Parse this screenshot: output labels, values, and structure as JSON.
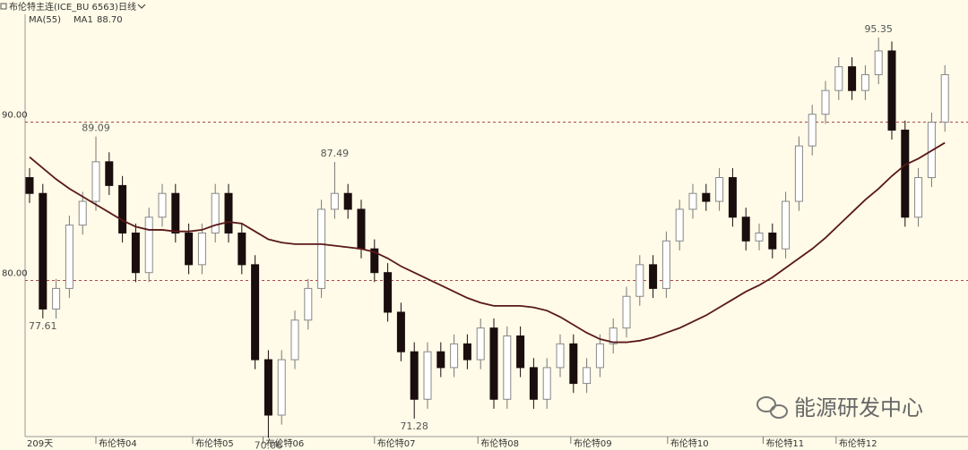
{
  "chart_data": {
    "type": "candlestick",
    "title": "布伦特主连(ICE_BU 6563)",
    "period": "日线",
    "indicator": "MA(55)",
    "ma_label": "MA1",
    "ma_last": {
      "value": 88.7,
      "label": "88.70"
    },
    "day_count": "209天",
    "watermark": "能源研发中心",
    "open": [
      86.5,
      85.5,
      78.2,
      79.5,
      83.5,
      85,
      87.5,
      86,
      83,
      80.5,
      84,
      85.5,
      83,
      81,
      83,
      85.5,
      83,
      81,
      75,
      71.5,
      75,
      77.5,
      79.5,
      84.5,
      85.5,
      84.5,
      82,
      80.5,
      78,
      75.5,
      72.5,
      75.5,
      74.5,
      76,
      75,
      77,
      72.5,
      76.5,
      74.5,
      72.5,
      74.5,
      76,
      73.5,
      74.5,
      76,
      77,
      79,
      81,
      79.5,
      82.5,
      84.5,
      85.5,
      85,
      86.5,
      84,
      82.5,
      83,
      82,
      85,
      88.5,
      90.5,
      92,
      93.5,
      92,
      93,
      94.5,
      89.5,
      84,
      86.5,
      90
    ],
    "high": [
      87.1,
      86.1,
      80.1,
      84.1,
      85.6,
      89.09,
      88.1,
      86.6,
      83.6,
      84.6,
      86.1,
      86.1,
      83.6,
      83.6,
      86.1,
      86.1,
      83.6,
      81.6,
      75.6,
      75.6,
      78.1,
      80.1,
      85.1,
      87.49,
      86.1,
      85.1,
      82.6,
      81.1,
      78.6,
      76.1,
      76.1,
      76.1,
      76.6,
      76.6,
      77.6,
      77.6,
      77.1,
      77.1,
      75.1,
      75.1,
      76.6,
      76.6,
      75.1,
      76.6,
      77.6,
      79.6,
      81.6,
      81.6,
      83.1,
      85.1,
      86.1,
      86.1,
      87.1,
      87.1,
      84.6,
      83.6,
      83.6,
      85.6,
      89.1,
      91.1,
      92.6,
      94.1,
      94.1,
      93.6,
      95.35,
      95.1,
      90.1,
      87.1,
      90.6,
      93.6
    ],
    "low": [
      84.9,
      77.61,
      77.6,
      78.9,
      82.9,
      84.4,
      85.4,
      82.4,
      79.9,
      79.9,
      83.4,
      82.4,
      80.4,
      80.4,
      82.4,
      82.4,
      80.4,
      74.4,
      70.06,
      70.9,
      74.4,
      76.9,
      78.9,
      83.9,
      83.9,
      81.4,
      79.9,
      77.4,
      74.9,
      71.28,
      71.9,
      73.9,
      73.9,
      74.4,
      74.4,
      71.9,
      71.9,
      73.9,
      71.9,
      71.9,
      73.9,
      72.9,
      72.9,
      73.9,
      75.4,
      76.4,
      78.4,
      78.9,
      78.9,
      81.9,
      83.9,
      84.4,
      84.4,
      83.4,
      81.9,
      81.9,
      81.4,
      81.4,
      84.4,
      87.9,
      89.9,
      91.4,
      91.4,
      91.4,
      92.4,
      88.9,
      83.4,
      83.4,
      85.9,
      89.4
    ],
    "close": [
      85.5,
      78.2,
      79.5,
      83.5,
      85,
      87.5,
      86,
      83,
      80.5,
      84,
      85.5,
      83,
      81,
      83,
      85.5,
      83,
      81,
      75,
      71.5,
      75,
      77.5,
      79.5,
      84.5,
      85.5,
      84.5,
      82,
      80.5,
      78,
      75.5,
      72.5,
      75.5,
      74.5,
      76,
      75,
      77,
      72.5,
      76.5,
      74.5,
      72.5,
      74.5,
      76,
      73.5,
      74.5,
      76,
      77,
      79,
      81,
      79.5,
      82.5,
      84.5,
      85.5,
      85,
      86.5,
      84,
      82.5,
      83,
      82,
      85,
      88.5,
      90.5,
      92,
      93.5,
      92,
      93,
      94.5,
      89.5,
      84,
      86.5,
      90,
      93
    ],
    "ma": [
      87.8,
      87.1,
      86.4,
      85.8,
      85.3,
      84.8,
      84.3,
      83.8,
      83.4,
      83.2,
      83.2,
      83.1,
      83.1,
      83.2,
      83.5,
      83.7,
      83.6,
      83.1,
      82.6,
      82.4,
      82.3,
      82.3,
      82.3,
      82.2,
      82.1,
      82,
      81.8,
      81.4,
      80.9,
      80.5,
      80.1,
      79.7,
      79.3,
      78.9,
      78.6,
      78.4,
      78.4,
      78.4,
      78.3,
      78.1,
      77.7,
      77.2,
      76.7,
      76.3,
      76.1,
      76.1,
      76.2,
      76.4,
      76.7,
      77,
      77.4,
      77.8,
      78.3,
      78.8,
      79.3,
      79.7,
      80.2,
      80.8,
      81.4,
      82,
      82.7,
      83.5,
      84.3,
      85.1,
      85.8,
      86.6,
      87.3,
      87.7,
      88.2,
      88.7
    ],
    "ma_color": "#5a1818",
    "up_color": "#ffffff",
    "down_color": "#1a0d0d",
    "labeled_highs": [
      5,
      23,
      64
    ],
    "labeled_lows": [
      1,
      18,
      29
    ],
    "ylim": [
      70.2,
      96.7
    ],
    "yticks": [
      {
        "value": 80,
        "label": "80.00"
      },
      {
        "value": 90,
        "label": "90.00"
      }
    ],
    "xticks": [
      {
        "value": 5,
        "label": "布伦特04"
      },
      {
        "value": 12.3,
        "label": "布伦特05"
      },
      {
        "value": 17.6,
        "label": "布伦特06"
      },
      {
        "value": 26,
        "label": "布伦特07"
      },
      {
        "value": 33.8,
        "label": "布伦特08"
      },
      {
        "value": 40.8,
        "label": "布伦特09"
      },
      {
        "value": 48.1,
        "label": "布伦特10"
      },
      {
        "value": 55.3,
        "label": "布伦特11"
      },
      {
        "value": 60.8,
        "label": "布伦特12"
      }
    ]
  }
}
